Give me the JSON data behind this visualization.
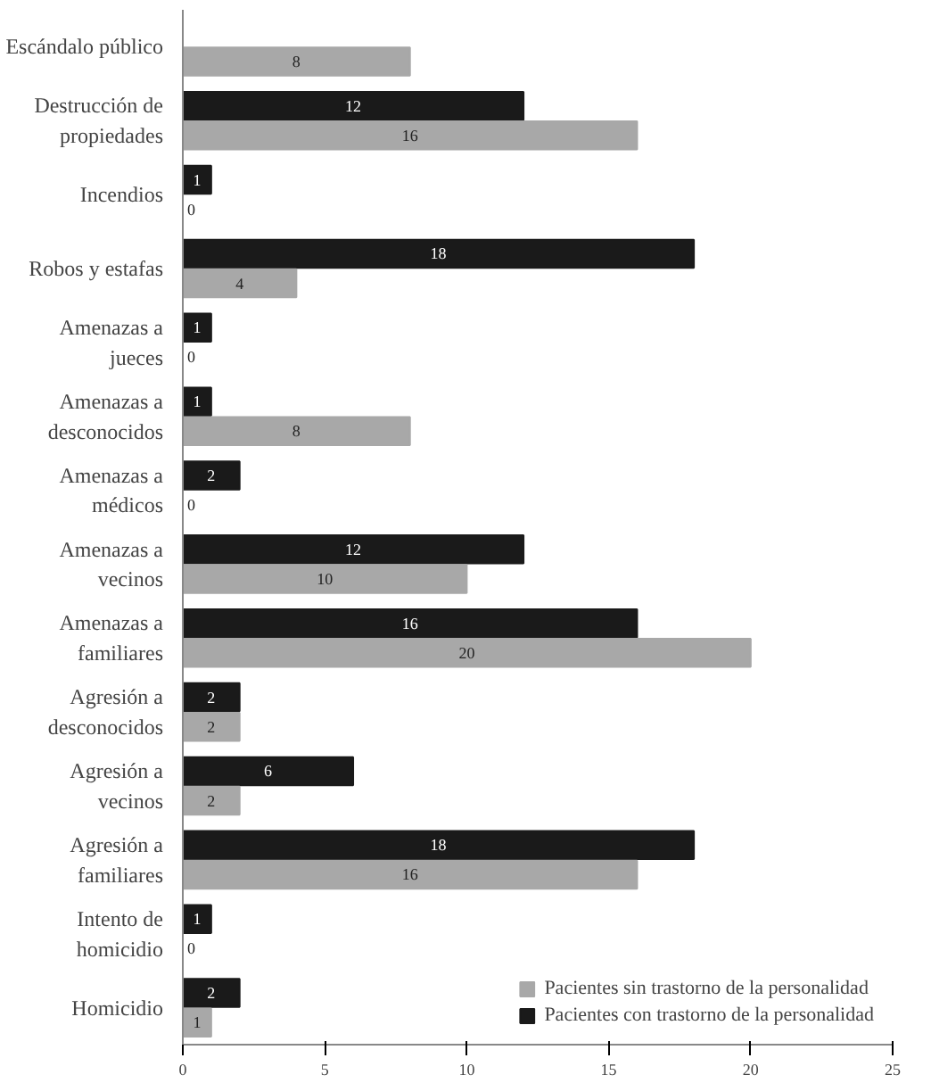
{
  "chart_data": {
    "type": "bar",
    "orientation": "horizontal",
    "categories": [
      "Escándalo público",
      "Destrucción de\npropiedades",
      "Incendios",
      "Robos y estafas",
      "Amenazas a\njueces",
      "Amenazas a\ndesconocidos",
      "Amenazas a\nmédicos",
      "Amenazas a\nvecinos",
      "Amenazas a\nfamiliares",
      "Agresión a\ndesconocidos",
      "Agresión a\nvecinos",
      "Agresión a\nfamiliares",
      "Intento de\nhomicidio",
      "Homicidio"
    ],
    "series": [
      {
        "name": "Pacientes con trastorno de la personalidad",
        "color": "#1a1a1a",
        "values": [
          null,
          12,
          1,
          18,
          1,
          1,
          2,
          12,
          16,
          2,
          6,
          18,
          1,
          2
        ]
      },
      {
        "name": "Pacientes sin trastorno de la personalidad",
        "color": "#a8a8a8",
        "values": [
          8,
          16,
          0,
          4,
          0,
          8,
          0,
          10,
          20,
          2,
          2,
          16,
          0,
          1
        ]
      }
    ],
    "xlim": [
      0,
      25
    ],
    "xticks": [
      0,
      5,
      10,
      15,
      20,
      25
    ],
    "data_labels": true,
    "grid": false,
    "legend": "bottom right"
  }
}
